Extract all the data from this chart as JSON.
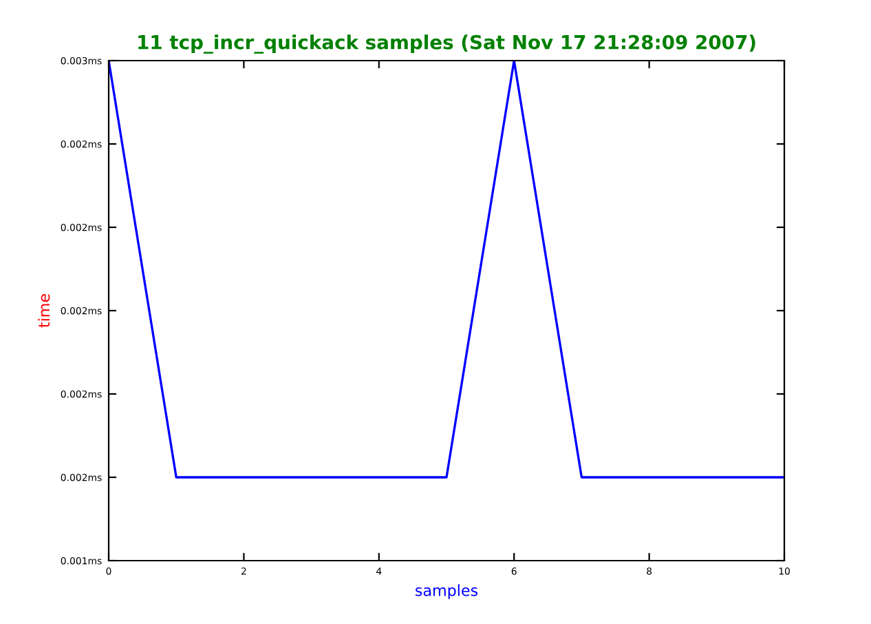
{
  "chart_data": {
    "type": "line",
    "title": "11 tcp_incr_quickack samples (Sat Nov 17 21:28:09 2007)",
    "xlabel": "samples",
    "ylabel": "time",
    "x": [
      0,
      1,
      2,
      3,
      4,
      5,
      6,
      7,
      8,
      9,
      10
    ],
    "series": [
      {
        "color": "#0000ff",
        "values": [
          0.0026,
          0.0016,
          0.0016,
          0.0016,
          0.0016,
          0.0016,
          0.0026,
          0.0016,
          0.0016,
          0.0016,
          0.0016
        ]
      }
    ],
    "xlim": [
      0,
      10
    ],
    "xticks": [
      0,
      2,
      4,
      6,
      8,
      10
    ],
    "ylim": [
      0.0014,
      0.0026
    ],
    "yticks": [
      {
        "value": 0.0014,
        "label": "0.001ms"
      },
      {
        "value": 0.0016,
        "label": "0.002ms"
      },
      {
        "value": 0.0018,
        "label": "0.002ms"
      },
      {
        "value": 0.002,
        "label": "0.002ms"
      },
      {
        "value": 0.0022,
        "label": "0.002ms"
      },
      {
        "value": 0.0024,
        "label": "0.002ms"
      },
      {
        "value": 0.0026,
        "label": "0.003ms"
      }
    ],
    "grid": false,
    "legend": false
  }
}
